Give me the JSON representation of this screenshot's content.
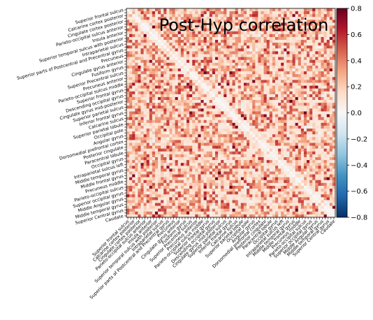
{
  "chart_data": {
    "type": "heatmap",
    "title": "Post-Hyp correlation",
    "vmin": -0.8,
    "vmax": 0.8,
    "colormap": "RdBu_r",
    "colorbar_ticks": [
      "0.8",
      "0.6",
      "0.4",
      "0.2",
      "0.0",
      "−0.2",
      "−0.4",
      "−0.6",
      "−0.8"
    ],
    "labels": [
      "Superior frontal sulcus",
      "Calcarine cortex posterior",
      "Cingulate cortex posterior",
      "Parieto-occipital sulcus anterior",
      "Insula anterior",
      "Superior temporal sulcus with posterior",
      "Intraparietal sulcus",
      "Superior parts of Postcentral and Precentral gyrus",
      "Precuneus",
      "Cingulate gyrus anterior",
      "Fusiform gyrus",
      "Superior Precentral sulcus",
      "Precuneus anterior",
      "Parieto-occipital sulcus middle",
      "Superior frontal gyrus",
      "Descending occipital gyrus",
      "Cingulate gyrus mid-posterior",
      "Superior parietal sulcus",
      "Inferior frontal gyrus",
      "Calcarine sulcus",
      "Superior parietal lobule",
      "Occipital pole",
      "Angular gyrus",
      "Dorsomedial prefrontal cortex",
      "Posterior cingulate",
      "Paracentral lobule",
      "Occipital gyrus",
      "Intraparietal sulcus left",
      "Middle temporal gyrus",
      "Middle frontal gyrus",
      "Precuneus middle",
      "Parieto-occipital sulcus",
      "Superior occipital gyrus",
      "Middle Angular gyrus",
      "Middle temporal gyrus",
      "Superior Central gyrus",
      "Caudate"
    ]
  }
}
